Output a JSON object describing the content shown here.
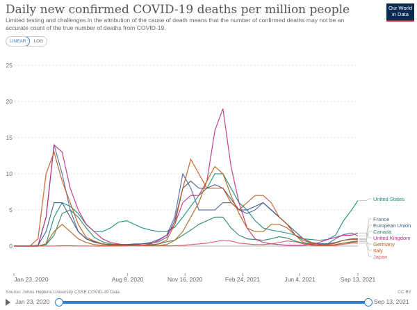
{
  "header": {
    "title": "Daily new confirmed COVID-19 deaths per million people",
    "subtitle": "Limited testing and challenges in the attribution of the cause of death means that the number of confirmed deaths may not be an accurate count of the true number of deaths from COVID-19.",
    "logo": "Our World in Data"
  },
  "scale_toggle": {
    "linear": "LINEAR",
    "log": "LOG",
    "selected": "LINEAR"
  },
  "footer": {
    "source": "Source: Johns Hopkins University CSSE COVID-19 Data",
    "license": "CC BY"
  },
  "timeline": {
    "start": "Jan 23, 2020",
    "end": "Sep 13, 2021"
  },
  "chart_data": {
    "type": "line",
    "title": "Daily new confirmed COVID-19 deaths per million people",
    "ylim": [
      0,
      27
    ],
    "y_ticks": [
      "0",
      "5",
      "10",
      "15",
      "20",
      "25"
    ],
    "x_range": [
      "2020-01-23",
      "2021-09-13"
    ],
    "x_ticks": [
      {
        "date": "2020-01-23",
        "label": "Jan 23, 2020"
      },
      {
        "date": "2020-08-08",
        "label": "Aug 8, 2020"
      },
      {
        "date": "2020-11-16",
        "label": "Nov 16, 2020"
      },
      {
        "date": "2021-02-24",
        "label": "Feb 24, 2021"
      },
      {
        "date": "2021-06-04",
        "label": "Jun 4, 2021"
      },
      {
        "date": "2021-09-13",
        "label": "Sep 13, 2021"
      }
    ],
    "grid": "horizontal dashed",
    "legend": "right, line-end labels",
    "x": [
      "2020-01-23",
      "2020-02-06",
      "2020-02-20",
      "2020-03-05",
      "2020-03-19",
      "2020-04-02",
      "2020-04-16",
      "2020-04-30",
      "2020-05-14",
      "2020-05-28",
      "2020-06-11",
      "2020-06-25",
      "2020-07-09",
      "2020-07-23",
      "2020-08-06",
      "2020-08-20",
      "2020-09-03",
      "2020-09-17",
      "2020-10-01",
      "2020-10-15",
      "2020-10-29",
      "2020-11-12",
      "2020-11-26",
      "2020-12-10",
      "2020-12-24",
      "2021-01-07",
      "2021-01-21",
      "2021-02-04",
      "2021-02-18",
      "2021-03-04",
      "2021-03-18",
      "2021-04-01",
      "2021-04-15",
      "2021-04-29",
      "2021-05-13",
      "2021-05-27",
      "2021-06-10",
      "2021-06-24",
      "2021-07-08",
      "2021-07-22",
      "2021-08-05",
      "2021-08-19",
      "2021-09-02",
      "2021-09-13"
    ],
    "series": [
      {
        "name": "United States",
        "color": "#18897f",
        "values": [
          0,
          0,
          0,
          0,
          0.3,
          4,
          6,
          5.5,
          4.5,
          3,
          2,
          2,
          2.5,
          3.3,
          3.5,
          3,
          2.5,
          2.2,
          2,
          2,
          2.6,
          4,
          5.5,
          7,
          8,
          10,
          10,
          8,
          6,
          5,
          3.5,
          2.5,
          2.2,
          2,
          1.8,
          1.5,
          1,
          0.9,
          0.8,
          0.9,
          1.5,
          3.5,
          5,
          6.3
        ]
      },
      {
        "name": "France",
        "color": "#4c6a9c",
        "values": [
          0,
          0,
          0,
          0.1,
          4,
          14,
          10,
          5,
          2,
          1,
          0.5,
          0.3,
          0.2,
          0.2,
          0.2,
          0.3,
          0.3,
          0.5,
          0.9,
          1.5,
          4,
          10,
          8,
          5,
          5,
          5,
          6,
          6,
          5,
          4.5,
          5,
          6,
          5,
          4,
          3,
          1.5,
          0.8,
          0.4,
          0.3,
          0.3,
          1,
          1.6,
          1.8,
          1.4
        ]
      },
      {
        "name": "European Union",
        "color": "#3a5a85",
        "values": [
          0,
          0,
          0,
          0.1,
          2,
          6,
          6,
          4,
          2,
          1,
          0.6,
          0.3,
          0.2,
          0.2,
          0.2,
          0.2,
          0.3,
          0.4,
          0.6,
          1.2,
          3.5,
          8,
          9,
          8,
          8,
          8.5,
          8,
          6.5,
          5,
          5,
          5.5,
          6,
          5,
          4,
          3,
          2,
          1,
          0.5,
          0.3,
          0.3,
          0.5,
          0.8,
          1,
          1
        ]
      },
      {
        "name": "Canada",
        "color": "#2c8465",
        "values": [
          0,
          0,
          0,
          0,
          0.2,
          1.5,
          4.5,
          5,
          4,
          2.5,
          1.2,
          0.6,
          0.3,
          0.2,
          0.1,
          0.1,
          0.1,
          0.1,
          0.3,
          0.6,
          0.8,
          1.5,
          2.2,
          3,
          3.5,
          4,
          4,
          2.5,
          1.5,
          1,
          0.9,
          0.8,
          1,
          1.3,
          1.1,
          0.7,
          0.4,
          0.2,
          0.1,
          0.1,
          0.2,
          0.4,
          0.6,
          0.7
        ]
      },
      {
        "name": "United Kingdom",
        "color": "#be2c7e",
        "values": [
          0,
          0,
          0,
          0,
          4,
          14,
          13,
          8,
          5,
          3,
          2,
          1,
          0.5,
          0.3,
          0.1,
          0.1,
          0.1,
          0.3,
          0.8,
          1.5,
          3,
          6,
          7,
          7,
          9,
          16,
          19,
          11,
          6,
          2.5,
          1,
          0.5,
          0.3,
          0.2,
          0.1,
          0.1,
          0.1,
          0.2,
          0.5,
          0.9,
          1.2,
          1.5,
          1.5,
          1.8
        ]
      },
      {
        "name": "Germany",
        "color": "#b16214",
        "values": [
          0,
          0,
          0,
          0,
          0.3,
          2,
          3,
          2,
          1,
          0.5,
          0.2,
          0.1,
          0.1,
          0.05,
          0.05,
          0.05,
          0.05,
          0.05,
          0.1,
          0.2,
          0.8,
          2,
          4,
          6,
          9,
          11,
          10,
          7,
          4.5,
          2.5,
          2,
          2,
          3,
          3,
          2.5,
          1.5,
          0.5,
          0.3,
          0.1,
          0.1,
          0.2,
          0.4,
          0.5,
          0.6
        ]
      },
      {
        "name": "Italy",
        "color": "#c8541a",
        "values": [
          0,
          0,
          0,
          1,
          10,
          13,
          9,
          6,
          3,
          1.2,
          0.7,
          0.3,
          0.2,
          0.1,
          0.1,
          0.1,
          0.1,
          0.2,
          0.3,
          0.8,
          3,
          8,
          12,
          10,
          8,
          8,
          8,
          6,
          5,
          6,
          7,
          7,
          6,
          4,
          3,
          1.5,
          1,
          0.5,
          0.2,
          0.2,
          0.4,
          0.8,
          0.9,
          0.9
        ]
      },
      {
        "name": "Japan",
        "color": "#e0585a",
        "values": [
          0,
          0,
          0,
          0,
          0,
          0.01,
          0.05,
          0.05,
          0.02,
          0.01,
          0,
          0,
          0,
          0.01,
          0.05,
          0.1,
          0.08,
          0.05,
          0.05,
          0.04,
          0.05,
          0.1,
          0.2,
          0.3,
          0.4,
          0.6,
          0.8,
          0.7,
          0.4,
          0.3,
          0.2,
          0.2,
          0.3,
          0.5,
          0.7,
          0.6,
          0.3,
          0.1,
          0.05,
          0.05,
          0.1,
          0.25,
          0.4,
          0.4
        ]
      }
    ]
  }
}
